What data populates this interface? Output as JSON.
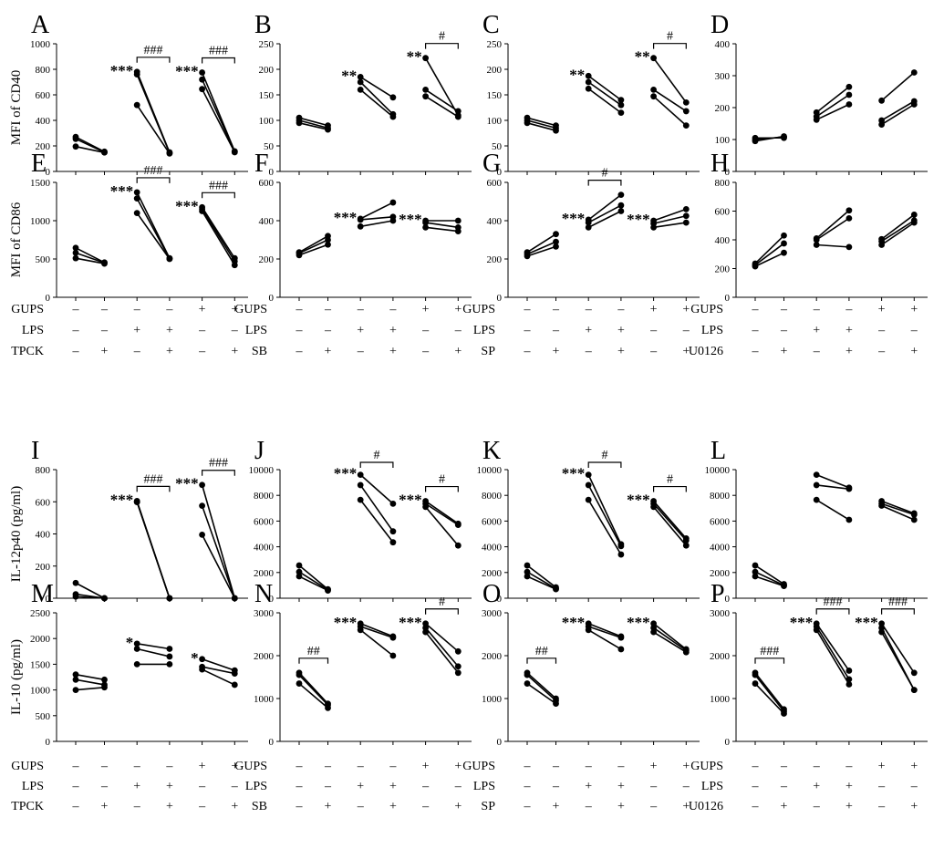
{
  "y_axis_titles": {
    "cd40": "MFI of CD40",
    "cd86": "MFI of CD86",
    "il12": "IL-12p40 (pg/ml)",
    "il10": "IL-10 (pg/ml)"
  },
  "treatment_tables": [
    {
      "rows": [
        {
          "label": "GUPS",
          "signs": [
            "–",
            "–",
            "–",
            "–",
            "+",
            "+"
          ]
        },
        {
          "label": "LPS",
          "signs": [
            "–",
            "–",
            "+",
            "+",
            "–",
            "–"
          ]
        },
        {
          "label": "TPCK",
          "signs": [
            "–",
            "+",
            "–",
            "+",
            "–",
            "+"
          ]
        }
      ]
    },
    {
      "rows": [
        {
          "label": "GUPS",
          "signs": [
            "–",
            "–",
            "–",
            "–",
            "+",
            "+"
          ]
        },
        {
          "label": "LPS",
          "signs": [
            "–",
            "–",
            "+",
            "+",
            "–",
            "–"
          ]
        },
        {
          "label": "SB",
          "signs": [
            "–",
            "+",
            "–",
            "+",
            "–",
            "+"
          ]
        }
      ]
    },
    {
      "rows": [
        {
          "label": "GUPS",
          "signs": [
            "–",
            "–",
            "–",
            "–",
            "+",
            "+"
          ]
        },
        {
          "label": "LPS",
          "signs": [
            "–",
            "–",
            "+",
            "+",
            "–",
            "–"
          ]
        },
        {
          "label": "SP",
          "signs": [
            "–",
            "+",
            "–",
            "+",
            "–",
            "+"
          ]
        }
      ]
    },
    {
      "rows": [
        {
          "label": "GUPS",
          "signs": [
            "–",
            "–",
            "–",
            "–",
            "+",
            "+"
          ]
        },
        {
          "label": "LPS",
          "signs": [
            "–",
            "–",
            "+",
            "+",
            "–",
            "–"
          ]
        },
        {
          "label": "U0126",
          "signs": [
            "–",
            "+",
            "–",
            "+",
            "–",
            "+"
          ]
        }
      ]
    }
  ],
  "chart_data": [
    {
      "label": "A",
      "type": "line",
      "ylim": [
        0,
        1000
      ],
      "yticks": [
        0,
        200,
        400,
        600,
        800,
        1000
      ],
      "groups": [
        {
          "pairs": [
            [
              270,
              155
            ],
            [
              255,
              150
            ],
            [
              195,
              148
            ]
          ],
          "sig": ""
        },
        {
          "pairs": [
            [
              780,
              150
            ],
            [
              760,
              145
            ],
            [
              520,
              140
            ]
          ],
          "sig": "***",
          "bracket": "###"
        },
        {
          "pairs": [
            [
              775,
              158
            ],
            [
              720,
              155
            ],
            [
              645,
              150
            ]
          ],
          "sig": "***",
          "bracket": "###"
        }
      ]
    },
    {
      "label": "B",
      "type": "line",
      "ylim": [
        0,
        250
      ],
      "yticks": [
        0,
        50,
        100,
        150,
        200,
        250
      ],
      "groups": [
        {
          "pairs": [
            [
              105,
              90
            ],
            [
              100,
              85
            ],
            [
              95,
              82
            ]
          ],
          "sig": ""
        },
        {
          "pairs": [
            [
              185,
              145
            ],
            [
              175,
              112
            ],
            [
              160,
              107
            ]
          ],
          "sig": "**"
        },
        {
          "pairs": [
            [
              222,
              110
            ],
            [
              160,
              118
            ],
            [
              147,
              107
            ]
          ],
          "sig": "**",
          "bracket": "#"
        }
      ]
    },
    {
      "label": "C",
      "type": "line",
      "ylim": [
        0,
        250
      ],
      "yticks": [
        0,
        50,
        100,
        150,
        200,
        250
      ],
      "groups": [
        {
          "pairs": [
            [
              105,
              90
            ],
            [
              100,
              85
            ],
            [
              95,
              80
            ]
          ],
          "sig": ""
        },
        {
          "pairs": [
            [
              187,
              140
            ],
            [
              175,
              130
            ],
            [
              162,
              115
            ]
          ],
          "sig": "**"
        },
        {
          "pairs": [
            [
              222,
              135
            ],
            [
              160,
              118
            ],
            [
              147,
              90
            ]
          ],
          "sig": "**",
          "bracket": "#"
        }
      ]
    },
    {
      "label": "D",
      "type": "line",
      "ylim": [
        0,
        400
      ],
      "yticks": [
        0,
        100,
        200,
        300,
        400
      ],
      "groups": [
        {
          "pairs": [
            [
              105,
              105
            ],
            [
              100,
              108
            ],
            [
              95,
              110
            ]
          ],
          "sig": ""
        },
        {
          "pairs": [
            [
              185,
              265
            ],
            [
              172,
              240
            ],
            [
              162,
              210
            ]
          ],
          "sig": ""
        },
        {
          "pairs": [
            [
              222,
              310
            ],
            [
              160,
              220
            ],
            [
              147,
              210
            ]
          ],
          "sig": ""
        }
      ]
    },
    {
      "label": "E",
      "type": "line",
      "ylim": [
        0,
        1500
      ],
      "yticks": [
        0,
        500,
        1000,
        1500
      ],
      "groups": [
        {
          "pairs": [
            [
              645,
              455
            ],
            [
              580,
              450
            ],
            [
              510,
              440
            ]
          ],
          "sig": ""
        },
        {
          "pairs": [
            [
              1370,
              510
            ],
            [
              1290,
              505
            ],
            [
              1100,
              500
            ]
          ],
          "sig": "***",
          "bracket": "###"
        },
        {
          "pairs": [
            [
              1175,
              510
            ],
            [
              1150,
              470
            ],
            [
              1125,
              420
            ]
          ],
          "sig": "***",
          "bracket": "###"
        }
      ]
    },
    {
      "label": "F",
      "type": "line",
      "ylim": [
        0,
        600
      ],
      "yticks": [
        0,
        200,
        400,
        600
      ],
      "groups": [
        {
          "pairs": [
            [
              235,
              320
            ],
            [
              230,
              300
            ],
            [
              220,
              275
            ]
          ],
          "sig": ""
        },
        {
          "pairs": [
            [
              410,
              495
            ],
            [
              405,
              420
            ],
            [
              370,
              400
            ]
          ],
          "sig": "***"
        },
        {
          "pairs": [
            [
              400,
              400
            ],
            [
              390,
              365
            ],
            [
              365,
              345
            ]
          ],
          "sig": "***"
        }
      ]
    },
    {
      "label": "G",
      "type": "line",
      "ylim": [
        0,
        600
      ],
      "yticks": [
        0,
        200,
        400,
        600
      ],
      "groups": [
        {
          "pairs": [
            [
              235,
              330
            ],
            [
              225,
              290
            ],
            [
              215,
              265
            ]
          ],
          "sig": ""
        },
        {
          "pairs": [
            [
              405,
              535
            ],
            [
              390,
              480
            ],
            [
              365,
              450
            ]
          ],
          "sig": "***",
          "bracket": "#"
        },
        {
          "pairs": [
            [
              400,
              460
            ],
            [
              385,
              425
            ],
            [
              365,
              390
            ]
          ],
          "sig": "***"
        }
      ]
    },
    {
      "label": "H",
      "type": "line",
      "ylim": [
        0,
        800
      ],
      "yticks": [
        0,
        200,
        400,
        600,
        800
      ],
      "groups": [
        {
          "pairs": [
            [
              235,
              430
            ],
            [
              225,
              375
            ],
            [
              215,
              310
            ]
          ],
          "sig": ""
        },
        {
          "pairs": [
            [
              410,
              605
            ],
            [
              400,
              550
            ],
            [
              365,
              350
            ]
          ],
          "sig": ""
        },
        {
          "pairs": [
            [
              405,
              575
            ],
            [
              390,
              535
            ],
            [
              365,
              520
            ]
          ],
          "sig": ""
        }
      ]
    },
    {
      "label": "I",
      "type": "line",
      "ylim": [
        0,
        800
      ],
      "yticks": [
        0,
        200,
        400,
        600,
        800
      ],
      "groups": [
        {
          "pairs": [
            [
              95,
              0
            ],
            [
              25,
              0
            ],
            [
              10,
              0
            ]
          ],
          "sig": ""
        },
        {
          "pairs": [
            [
              605,
              0
            ],
            [
              600,
              0
            ],
            [
              598,
              0
            ]
          ],
          "sig": "***",
          "bracket": "###"
        },
        {
          "pairs": [
            [
              705,
              0
            ],
            [
              575,
              0
            ],
            [
              395,
              0
            ]
          ],
          "sig": "***",
          "bracket": "###"
        }
      ]
    },
    {
      "label": "J",
      "type": "line",
      "ylim": [
        0,
        10000
      ],
      "yticks": [
        0,
        2000,
        4000,
        6000,
        8000,
        10000
      ],
      "groups": [
        {
          "pairs": [
            [
              2550,
              700
            ],
            [
              2050,
              650
            ],
            [
              1700,
              600
            ]
          ],
          "sig": ""
        },
        {
          "pairs": [
            [
              9600,
              7350
            ],
            [
              8800,
              5200
            ],
            [
              7650,
              4350
            ]
          ],
          "sig": "***",
          "bracket": "#"
        },
        {
          "pairs": [
            [
              7550,
              5800
            ],
            [
              7350,
              5700
            ],
            [
              7100,
              4100
            ]
          ],
          "sig": "***",
          "bracket": "#"
        }
      ]
    },
    {
      "label": "K",
      "type": "line",
      "ylim": [
        0,
        10000
      ],
      "yticks": [
        0,
        2000,
        4000,
        6000,
        8000,
        10000
      ],
      "groups": [
        {
          "pairs": [
            [
              2550,
              850
            ],
            [
              2050,
              750
            ],
            [
              1700,
              700
            ]
          ],
          "sig": ""
        },
        {
          "pairs": [
            [
              9600,
              4200
            ],
            [
              8800,
              4050
            ],
            [
              7650,
              3400
            ]
          ],
          "sig": "***",
          "bracket": "#"
        },
        {
          "pairs": [
            [
              7550,
              4650
            ],
            [
              7350,
              4500
            ],
            [
              7100,
              4100
            ]
          ],
          "sig": "***",
          "bracket": "#"
        }
      ]
    },
    {
      "label": "L",
      "type": "line",
      "ylim": [
        0,
        10000
      ],
      "yticks": [
        0,
        2000,
        4000,
        6000,
        8000,
        10000
      ],
      "groups": [
        {
          "pairs": [
            [
              2550,
              1100
            ],
            [
              2050,
              1000
            ],
            [
              1700,
              950
            ]
          ],
          "sig": ""
        },
        {
          "pairs": [
            [
              9600,
              8600
            ],
            [
              8800,
              8500
            ],
            [
              7650,
              6100
            ]
          ],
          "sig": ""
        },
        {
          "pairs": [
            [
              7550,
              6600
            ],
            [
              7350,
              6500
            ],
            [
              7200,
              6100
            ]
          ],
          "sig": ""
        }
      ]
    },
    {
      "label": "M",
      "type": "line",
      "ylim": [
        0,
        2500
      ],
      "yticks": [
        0,
        500,
        1000,
        1500,
        2000,
        2500
      ],
      "groups": [
        {
          "pairs": [
            [
              1300,
              1200
            ],
            [
              1200,
              1100
            ],
            [
              1000,
              1050
            ]
          ],
          "sig": ""
        },
        {
          "pairs": [
            [
              1900,
              1800
            ],
            [
              1800,
              1650
            ],
            [
              1500,
              1500
            ]
          ],
          "sig": "*"
        },
        {
          "pairs": [
            [
              1600,
              1380
            ],
            [
              1450,
              1320
            ],
            [
              1400,
              1100
            ]
          ],
          "sig": "*"
        }
      ]
    },
    {
      "label": "N",
      "type": "line",
      "ylim": [
        0,
        3000
      ],
      "yticks": [
        0,
        1000,
        2000,
        3000
      ],
      "groups": [
        {
          "pairs": [
            [
              1600,
              880
            ],
            [
              1550,
              850
            ],
            [
              1350,
              780
            ]
          ],
          "sig": "",
          "bracket": "##"
        },
        {
          "pairs": [
            [
              2750,
              2450
            ],
            [
              2680,
              2420
            ],
            [
              2600,
              2000
            ]
          ],
          "sig": "***"
        },
        {
          "pairs": [
            [
              2750,
              2100
            ],
            [
              2650,
              1750
            ],
            [
              2550,
              1600
            ]
          ],
          "sig": "***",
          "bracket": "#"
        }
      ]
    },
    {
      "label": "O",
      "type": "line",
      "ylim": [
        0,
        3000
      ],
      "yticks": [
        0,
        1000,
        2000,
        3000
      ],
      "groups": [
        {
          "pairs": [
            [
              1600,
              1000
            ],
            [
              1550,
              950
            ],
            [
              1350,
              880
            ]
          ],
          "sig": "",
          "bracket": "##"
        },
        {
          "pairs": [
            [
              2750,
              2450
            ],
            [
              2680,
              2420
            ],
            [
              2600,
              2150
            ]
          ],
          "sig": "***"
        },
        {
          "pairs": [
            [
              2750,
              2150
            ],
            [
              2650,
              2120
            ],
            [
              2550,
              2080
            ]
          ],
          "sig": "***"
        }
      ]
    },
    {
      "label": "P",
      "type": "line",
      "ylim": [
        0,
        3000
      ],
      "yticks": [
        0,
        1000,
        2000,
        3000
      ],
      "groups": [
        {
          "pairs": [
            [
              1600,
              750
            ],
            [
              1550,
              700
            ],
            [
              1350,
              650
            ]
          ],
          "sig": "",
          "bracket": "###"
        },
        {
          "pairs": [
            [
              2750,
              1650
            ],
            [
              2680,
              1450
            ],
            [
              2600,
              1330
            ]
          ],
          "sig": "***",
          "bracket": "###"
        },
        {
          "pairs": [
            [
              2750,
              1600
            ],
            [
              2650,
              1200
            ],
            [
              2550,
              1200
            ]
          ],
          "sig": "***",
          "bracket": "###"
        }
      ]
    }
  ]
}
